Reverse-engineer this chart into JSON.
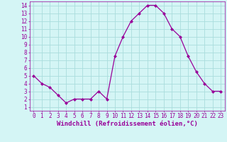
{
  "x": [
    0,
    1,
    2,
    3,
    4,
    5,
    6,
    7,
    8,
    9,
    10,
    11,
    12,
    13,
    14,
    15,
    16,
    17,
    18,
    19,
    20,
    21,
    22,
    23
  ],
  "y": [
    5.0,
    4.0,
    3.5,
    2.5,
    1.5,
    2.0,
    2.0,
    2.0,
    3.0,
    2.0,
    7.5,
    10.0,
    12.0,
    13.0,
    14.0,
    14.0,
    13.0,
    11.0,
    10.0,
    7.5,
    5.5,
    4.0,
    3.0,
    3.0
  ],
  "line_color": "#990099",
  "marker": "D",
  "marker_size": 2.0,
  "bg_color": "#d4f5f5",
  "grid_color": "#aadddd",
  "xlabel": "Windchill (Refroidissement éolien,°C)",
  "xlabel_color": "#990099",
  "tick_color": "#990099",
  "xlim": [
    -0.5,
    23.5
  ],
  "ylim": [
    0.5,
    14.5
  ],
  "yticks": [
    1,
    2,
    3,
    4,
    5,
    6,
    7,
    8,
    9,
    10,
    11,
    12,
    13,
    14
  ],
  "xticks": [
    0,
    1,
    2,
    3,
    4,
    5,
    6,
    7,
    8,
    9,
    10,
    11,
    12,
    13,
    14,
    15,
    16,
    17,
    18,
    19,
    20,
    21,
    22,
    23
  ],
  "tick_fontsize": 5.5,
  "xlabel_fontsize": 6.5,
  "linewidth": 0.9
}
